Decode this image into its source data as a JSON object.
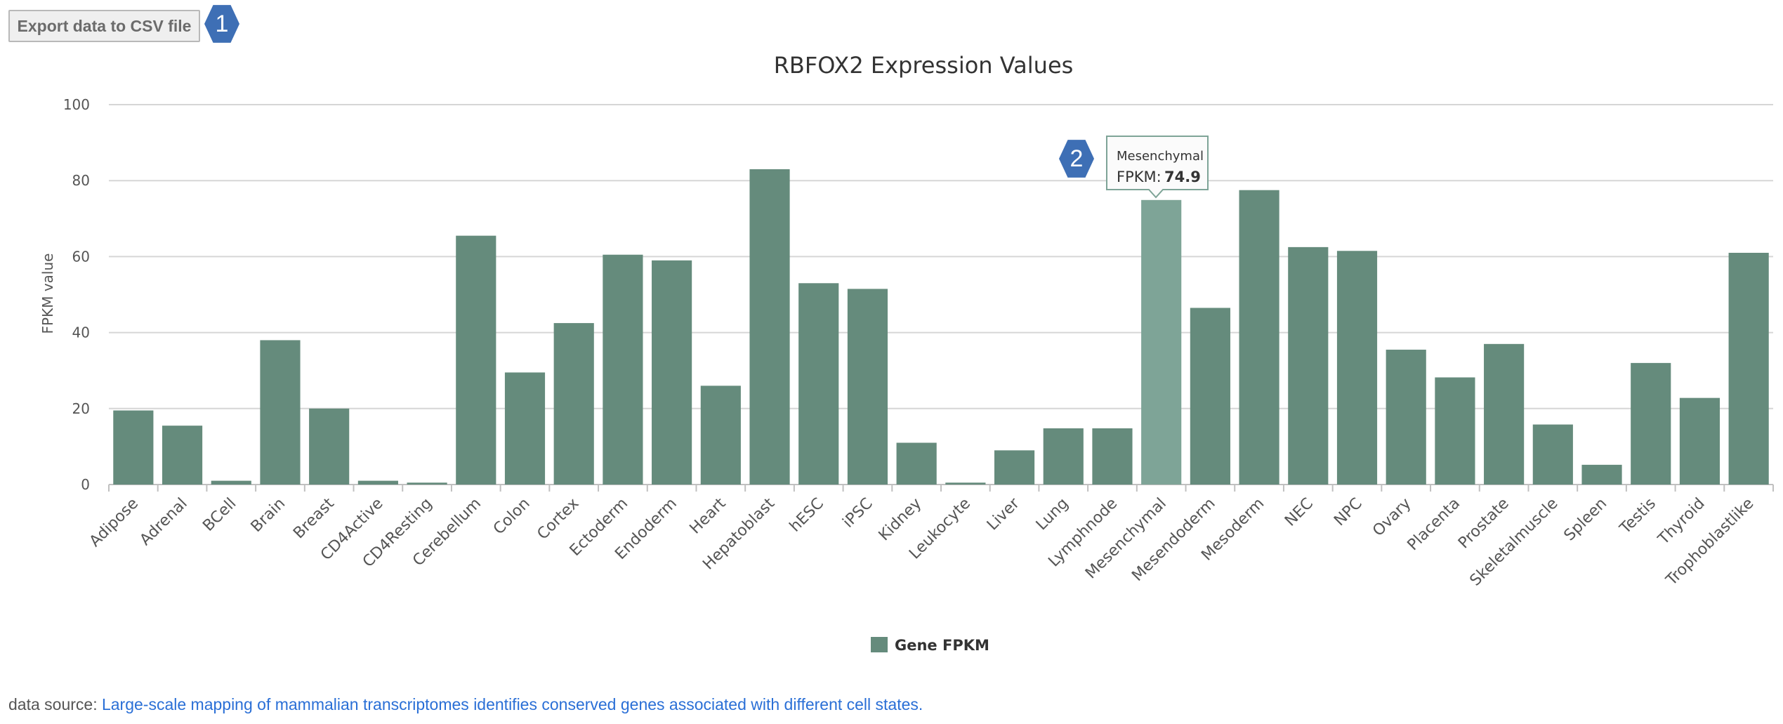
{
  "toolbar": {
    "export_label": "Export data to CSV file"
  },
  "badges": {
    "one": "1",
    "two": "2"
  },
  "tooltip": {
    "category": "Mesenchymal",
    "label": "FPKM:",
    "value": "74.9"
  },
  "footer": {
    "prefix": "data source: ",
    "link_text": "Large-scale mapping of mammalian transcriptomes identifies conserved genes associated with different cell states."
  },
  "colors": {
    "bar": "#658b7c",
    "bar_highlight": "#7ea497",
    "grid": "#d6d6d6",
    "badge": "#3e6fb5",
    "link": "#2a6fd6"
  },
  "chart_data": {
    "type": "bar",
    "title": "RBFOX2 Expression Values",
    "xlabel": "",
    "ylabel": "FPKM value",
    "ylim": [
      0,
      100
    ],
    "yticks": [
      0,
      20,
      40,
      60,
      80,
      100
    ],
    "grid": true,
    "legend_position": "bottom-center",
    "highlighted_category": "Mesenchymal",
    "categories": [
      "Adipose",
      "Adrenal",
      "BCell",
      "Brain",
      "Breast",
      "CD4Active",
      "CD4Resting",
      "Cerebellum",
      "Colon",
      "Cortex",
      "Ectoderm",
      "Endoderm",
      "Heart",
      "Hepatoblast",
      "hESC",
      "iPSC",
      "Kidney",
      "Leukocyte",
      "Liver",
      "Lung",
      "Lymphnode",
      "Mesenchymal",
      "Mesendoderm",
      "Mesoderm",
      "NEC",
      "NPC",
      "Ovary",
      "Placenta",
      "Prostate",
      "Skeletalmuscle",
      "Spleen",
      "Testis",
      "Thyroid",
      "Trophoblastlike"
    ],
    "series": [
      {
        "name": "Gene FPKM",
        "values": [
          19.5,
          15.5,
          1.0,
          38.0,
          20.0,
          1.0,
          0.5,
          65.5,
          29.5,
          42.5,
          60.5,
          59.0,
          26.0,
          83.0,
          53.0,
          51.5,
          11.0,
          0.5,
          9.0,
          14.8,
          14.8,
          74.9,
          46.5,
          77.5,
          62.5,
          61.5,
          35.5,
          28.2,
          37.0,
          15.8,
          5.2,
          32.0,
          22.8,
          61.0
        ]
      }
    ]
  }
}
